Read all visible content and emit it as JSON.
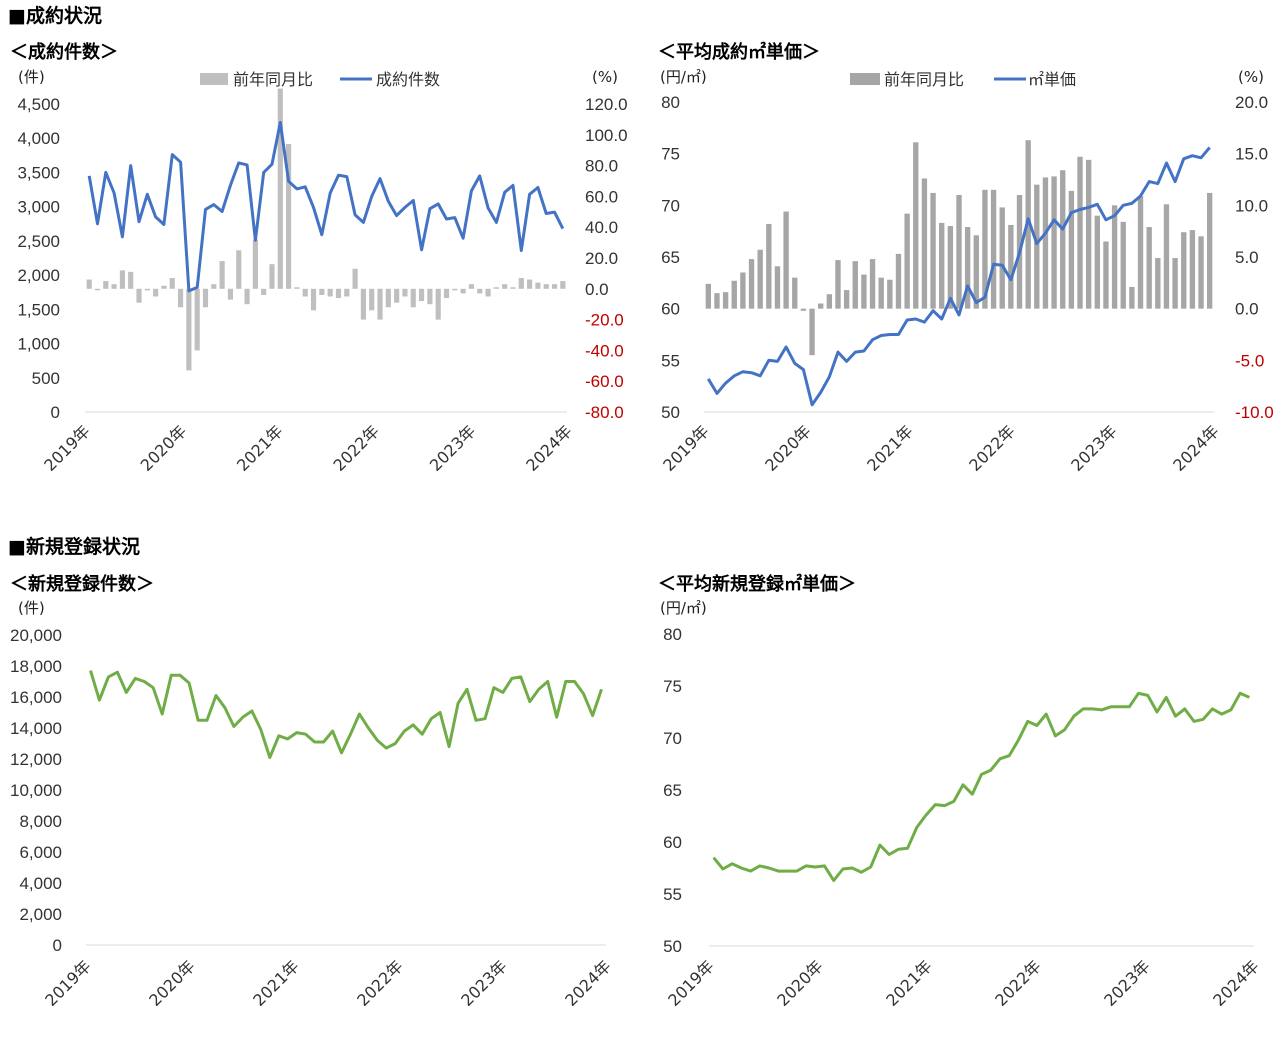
{
  "sections": {
    "contract_title": "■成約状況",
    "new_listing_title": "■新規登録状況"
  },
  "chart_data": [
    {
      "id": "contract_count",
      "type": "bar+line",
      "title": "＜成約件数＞",
      "left_unit": "(件)",
      "right_unit": "(%)",
      "legend": [
        "前年同月比",
        "成約件数"
      ],
      "colors": {
        "bar": "#bfbfbf",
        "line": "#4472c4"
      },
      "left_ticks": [
        "4,500",
        "4,000",
        "3,500",
        "3,000",
        "2,500",
        "2,000",
        "1,500",
        "1,000",
        "500",
        "0"
      ],
      "right_ticks": [
        "120.0",
        "100.0",
        "80.0",
        "60.0",
        "40.0",
        "20.0",
        "0.0",
        "-20.0",
        "-40.0",
        "-60.0",
        "-80.0"
      ],
      "ylim_left": [
        0,
        4500
      ],
      "ylim_right": [
        -80,
        120
      ],
      "x_labels": [
        "2019年",
        "2020年",
        "2021年",
        "2022年",
        "2023年",
        "2024年"
      ],
      "series": [
        {
          "name": "前年同月比",
          "kind": "bar",
          "axis": "right",
          "values": [
            6,
            -1,
            5,
            3,
            12,
            11,
            -9,
            -1,
            -5,
            2,
            7,
            -12,
            -53,
            -40,
            -12,
            3,
            18,
            -7,
            25,
            -10,
            32,
            -4,
            16,
            130,
            94,
            1,
            -5,
            -14,
            -4,
            -5,
            -6,
            -5,
            13,
            -20,
            -14,
            -20,
            -12,
            -9,
            -5,
            -12,
            -8,
            -10,
            -20,
            -6,
            -1,
            -3,
            3,
            -3,
            -5,
            1,
            3,
            1,
            7,
            6,
            4,
            3,
            3,
            5
          ],
          "comment": "2019-01 .. 2023-10 (58 months)"
        },
        {
          "name": "成約件数",
          "kind": "line",
          "axis": "left",
          "values": [
            3450,
            2750,
            3500,
            3200,
            2560,
            3600,
            2780,
            3180,
            2850,
            2740,
            3760,
            3650,
            1770,
            1820,
            2960,
            3030,
            2930,
            3310,
            3640,
            3610,
            2510,
            3500,
            3620,
            4230,
            3370,
            3260,
            3290,
            2990,
            2590,
            3200,
            3460,
            3440,
            2880,
            2770,
            3150,
            3410,
            3080,
            2870,
            2990,
            3090,
            2370,
            2970,
            3040,
            2820,
            2840,
            2540,
            3230,
            3450,
            2980,
            2770,
            3210,
            3310,
            2360,
            3180,
            3280,
            2900,
            2920,
            2680
          ],
          "comment": "2019-01 .. 2023-10 (58 months)"
        }
      ]
    },
    {
      "id": "contract_unit_price",
      "type": "bar+line",
      "title": "＜平均成約㎡単価＞",
      "left_unit": "(円/㎡)",
      "right_unit": "(%)",
      "legend": [
        "前年同月比",
        "㎡単価"
      ],
      "colors": {
        "bar": "#a6a6a6",
        "line": "#4472c4"
      },
      "left_ticks": [
        "80",
        "75",
        "70",
        "65",
        "60",
        "55",
        "50"
      ],
      "right_ticks": [
        "20.0",
        "15.0",
        "10.0",
        "5.0",
        "0.0",
        "-5.0",
        "-10.0"
      ],
      "ylim_left": [
        50,
        80
      ],
      "ylim_right": [
        -10,
        20
      ],
      "x_labels": [
        "2019年",
        "2020年",
        "2021年",
        "2022年",
        "2023年",
        "2024年"
      ],
      "series": [
        {
          "name": "前年同月比",
          "kind": "bar",
          "axis": "right",
          "values": [
            2.4,
            1.5,
            1.6,
            2.7,
            3.5,
            4.8,
            5.7,
            8.2,
            4.1,
            9.4,
            3.0,
            -0.2,
            -4.5,
            0.5,
            1.4,
            4.7,
            1.8,
            4.6,
            3.3,
            4.8,
            3.0,
            2.8,
            5.3,
            9.2,
            16.1,
            12.6,
            11.2,
            8.3,
            8.0,
            11.0,
            7.9,
            7.1,
            11.5,
            11.5,
            9.8,
            8.1,
            11.0,
            16.3,
            12.0,
            12.7,
            12.8,
            13.4,
            11.4,
            14.7,
            14.4,
            9.0,
            6.5,
            10.0,
            8.4,
            2.1,
            10.9,
            7.9,
            4.9,
            10.1,
            4.9,
            7.4,
            7.6,
            7.0,
            11.2
          ],
          "comment": "2019-01 .. 2023-11 (59 months)"
        },
        {
          "name": "㎡単価",
          "kind": "line",
          "axis": "left",
          "values": [
            53.2,
            51.8,
            52.8,
            53.5,
            53.9,
            53.8,
            53.5,
            55.0,
            54.9,
            56.3,
            54.7,
            54.1,
            50.7,
            51.9,
            53.4,
            55.8,
            54.9,
            55.8,
            55.9,
            57.0,
            57.4,
            57.5,
            57.5,
            58.9,
            59.0,
            58.7,
            59.8,
            59.0,
            61.0,
            59.4,
            62.2,
            60.6,
            61.1,
            64.3,
            64.2,
            62.8,
            65.4,
            68.7,
            66.3,
            67.3,
            68.6,
            67.7,
            69.3,
            69.6,
            69.8,
            70.1,
            68.6,
            69.0,
            70.0,
            70.2,
            70.9,
            72.3,
            72.1,
            74.1,
            72.3,
            74.5,
            74.8,
            74.6,
            75.6
          ],
          "comment": "2019-01 .. 2023-11 (59 months)"
        }
      ]
    },
    {
      "id": "new_listing_count",
      "type": "line",
      "title": "＜新規登録件数＞",
      "left_unit": "(件)",
      "colors": {
        "line": "#70ad47"
      },
      "left_ticks": [
        "20,000",
        "18,000",
        "16,000",
        "14,000",
        "12,000",
        "10,000",
        "8,000",
        "6,000",
        "4,000",
        "2,000",
        "0"
      ],
      "ylim_left": [
        0,
        20000
      ],
      "x_labels": [
        "2019年",
        "2020年",
        "2021年",
        "2022年",
        "2023年",
        "2024年"
      ],
      "series": [
        {
          "name": "",
          "kind": "line",
          "values": [
            17700,
            15800,
            17300,
            17600,
            16300,
            17200,
            17000,
            16600,
            14900,
            17400,
            17400,
            16900,
            14500,
            14500,
            16100,
            15300,
            14100,
            14700,
            15100,
            13900,
            12100,
            13500,
            13300,
            13700,
            13600,
            13100,
            13100,
            13800,
            12400,
            13600,
            14900,
            14000,
            13200,
            12700,
            13000,
            13800,
            14200,
            13600,
            14600,
            15000,
            12800,
            15600,
            16500,
            14500,
            14600,
            16600,
            16300,
            17200,
            17300,
            15700,
            16500,
            17000,
            14700,
            17000,
            17000,
            16200,
            14800,
            16500
          ],
          "comment": "2019-01 .. 2023-10 (58 months)"
        }
      ]
    },
    {
      "id": "new_listing_unit_price",
      "type": "line",
      "title": "＜平均新規登録㎡単価＞",
      "left_unit": "(円/㎡)",
      "colors": {
        "line": "#70ad47"
      },
      "left_ticks": [
        "80",
        "75",
        "70",
        "65",
        "60",
        "55",
        "50"
      ],
      "ylim_left": [
        50,
        80
      ],
      "x_labels": [
        "2019年",
        "2020年",
        "2021年",
        "2022年",
        "2023年",
        "2024年"
      ],
      "series": [
        {
          "name": "",
          "kind": "line",
          "values": [
            58.5,
            57.4,
            57.9,
            57.5,
            57.2,
            57.7,
            57.5,
            57.2,
            57.2,
            57.2,
            57.7,
            57.6,
            57.7,
            56.3,
            57.4,
            57.5,
            57.1,
            57.6,
            59.7,
            58.8,
            59.3,
            59.4,
            61.4,
            62.6,
            63.6,
            63.5,
            63.9,
            65.5,
            64.6,
            66.5,
            66.9,
            68.0,
            68.3,
            69.8,
            71.6,
            71.2,
            72.3,
            70.2,
            70.8,
            72.1,
            72.8,
            72.8,
            72.7,
            73.0,
            73.0,
            73.0,
            74.3,
            74.1,
            72.5,
            73.9,
            72.1,
            72.8,
            71.6,
            71.8,
            72.8,
            72.3,
            72.7,
            74.3,
            73.9
          ],
          "comment": "2019-01 .. 2023-11 (59 months)"
        }
      ]
    }
  ]
}
